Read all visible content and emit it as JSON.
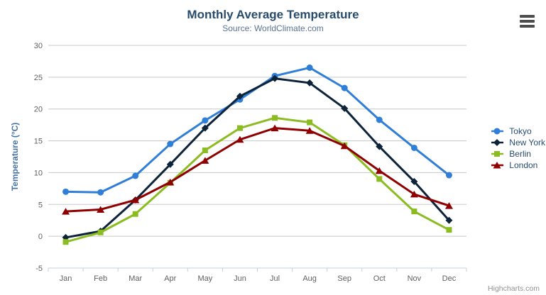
{
  "chart": {
    "title": "Monthly Average Temperature",
    "subtitle": "Source: WorldClimate.com",
    "credits": "Highcharts.com"
  },
  "chart_data": {
    "type": "line",
    "title": "Monthly Average Temperature",
    "subtitle": "Source: WorldClimate.com",
    "categories": [
      "Jan",
      "Feb",
      "Mar",
      "Apr",
      "May",
      "Jun",
      "Jul",
      "Aug",
      "Sep",
      "Oct",
      "Nov",
      "Dec"
    ],
    "xlabel": "",
    "ylabel": "Temperature (°C)",
    "ylim": [
      -5,
      30
    ],
    "ytick_interval": 5,
    "grid": true,
    "legend_position": "right",
    "series": [
      {
        "name": "Tokyo",
        "color": "#2f7ed8",
        "marker": "circle",
        "values": [
          7.0,
          6.9,
          9.5,
          14.5,
          18.2,
          21.5,
          25.2,
          26.5,
          23.3,
          18.3,
          13.9,
          9.6
        ]
      },
      {
        "name": "New York",
        "color": "#0d233a",
        "marker": "diamond",
        "values": [
          -0.2,
          0.8,
          5.7,
          11.3,
          17.0,
          22.0,
          24.8,
          24.1,
          20.1,
          14.1,
          8.6,
          2.5
        ]
      },
      {
        "name": "Berlin",
        "color": "#8bbc21",
        "marker": "square",
        "values": [
          -0.9,
          0.6,
          3.5,
          8.4,
          13.5,
          17.0,
          18.6,
          17.9,
          14.3,
          9.0,
          3.9,
          1.0
        ]
      },
      {
        "name": "London",
        "color": "#910000",
        "marker": "triangle",
        "values": [
          3.9,
          4.2,
          5.7,
          8.5,
          11.9,
          15.2,
          17.0,
          16.6,
          14.2,
          10.3,
          6.6,
          4.8
        ]
      }
    ],
    "style": {
      "gridline_color": "#c8c8c8",
      "axis_line_color": "#c0d0e0",
      "axis_label_color": "#606060",
      "y_axis_title_color": "#4572a7"
    }
  }
}
